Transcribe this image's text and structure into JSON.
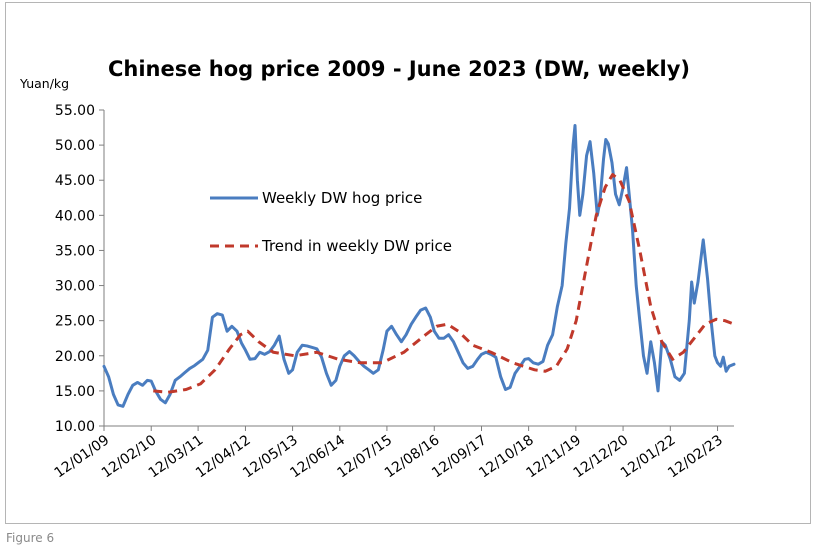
{
  "caption": "Figure 6",
  "chart_data": {
    "type": "line",
    "title": "Chinese hog price 2009 - June 2023 (DW, weekly)",
    "ylabel": "Yuan/kg",
    "xlabel": "",
    "ylim": [
      10,
      55
    ],
    "yticks": [
      "10.00",
      "15.00",
      "20.00",
      "25.00",
      "30.00",
      "35.00",
      "40.00",
      "45.00",
      "50.00",
      "55.00"
    ],
    "xticks": [
      "12/01/09",
      "12/02/10",
      "12/03/11",
      "12/04/12",
      "12/05/13",
      "12/06/14",
      "12/07/15",
      "12/08/16",
      "12/09/17",
      "12/10/18",
      "12/11/19",
      "12/12/20",
      "12/01/22",
      "12/02/23"
    ],
    "xtick_dates": [
      "2009-01-12",
      "2010-02-12",
      "2011-03-12",
      "2012-04-12",
      "2013-05-12",
      "2014-06-12",
      "2015-07-12",
      "2016-08-12",
      "2017-09-12",
      "2018-10-12",
      "2019-11-12",
      "2020-12-12",
      "2022-01-12",
      "2023-02-12"
    ],
    "x_end": "2023-06-30",
    "grid": false,
    "legend_position": "upper-left",
    "series": [
      {
        "name": "Weekly DW hog price",
        "style": "solid",
        "color": "#4a7dc0",
        "points": [
          [
            "2009-01-12",
            18.5
          ],
          [
            "2009-02-20",
            17.0
          ],
          [
            "2009-04-01",
            14.5
          ],
          [
            "2009-05-10",
            13.0
          ],
          [
            "2009-06-20",
            12.8
          ],
          [
            "2009-08-01",
            14.5
          ],
          [
            "2009-09-10",
            15.8
          ],
          [
            "2009-10-20",
            16.2
          ],
          [
            "2009-12-01",
            15.8
          ],
          [
            "2010-01-10",
            16.5
          ],
          [
            "2010-02-12",
            16.4
          ],
          [
            "2010-03-20",
            15.0
          ],
          [
            "2010-05-01",
            13.8
          ],
          [
            "2010-06-10",
            13.3
          ],
          [
            "2010-07-20",
            14.5
          ],
          [
            "2010-09-01",
            16.5
          ],
          [
            "2010-10-10",
            17.0
          ],
          [
            "2010-11-20",
            17.6
          ],
          [
            "2011-01-01",
            18.2
          ],
          [
            "2011-02-10",
            18.6
          ],
          [
            "2011-03-12",
            19.0
          ],
          [
            "2011-04-20",
            19.5
          ],
          [
            "2011-06-01",
            20.8
          ],
          [
            "2011-07-10",
            25.5
          ],
          [
            "2011-08-20",
            26.0
          ],
          [
            "2011-10-01",
            25.8
          ],
          [
            "2011-11-10",
            23.5
          ],
          [
            "2011-12-20",
            24.2
          ],
          [
            "2012-02-01",
            23.5
          ],
          [
            "2012-03-10",
            21.8
          ],
          [
            "2012-04-12",
            20.8
          ],
          [
            "2012-05-20",
            19.5
          ],
          [
            "2012-07-01",
            19.6
          ],
          [
            "2012-08-10",
            20.5
          ],
          [
            "2012-09-20",
            20.2
          ],
          [
            "2012-11-01",
            20.6
          ],
          [
            "2012-12-10",
            21.5
          ],
          [
            "2013-01-20",
            22.8
          ],
          [
            "2013-03-01",
            19.5
          ],
          [
            "2013-04-10",
            17.5
          ],
          [
            "2013-05-12",
            18.0
          ],
          [
            "2013-06-20",
            20.5
          ],
          [
            "2013-08-01",
            21.5
          ],
          [
            "2013-09-10",
            21.4
          ],
          [
            "2013-10-20",
            21.2
          ],
          [
            "2013-12-01",
            21.0
          ],
          [
            "2014-01-10",
            19.8
          ],
          [
            "2014-02-20",
            17.5
          ],
          [
            "2014-04-01",
            15.8
          ],
          [
            "2014-05-10",
            16.5
          ],
          [
            "2014-06-12",
            18.5
          ],
          [
            "2014-07-20",
            20.0
          ],
          [
            "2014-09-01",
            20.6
          ],
          [
            "2014-10-10",
            20.0
          ],
          [
            "2014-11-20",
            19.2
          ],
          [
            "2015-01-01",
            18.5
          ],
          [
            "2015-02-10",
            18.0
          ],
          [
            "2015-03-20",
            17.5
          ],
          [
            "2015-05-01",
            18.0
          ],
          [
            "2015-06-10",
            20.8
          ],
          [
            "2015-07-12",
            23.5
          ],
          [
            "2015-08-20",
            24.2
          ],
          [
            "2015-10-01",
            23.0
          ],
          [
            "2015-11-10",
            22.0
          ],
          [
            "2015-12-20",
            23.0
          ],
          [
            "2016-02-01",
            24.5
          ],
          [
            "2016-03-10",
            25.5
          ],
          [
            "2016-04-20",
            26.5
          ],
          [
            "2016-06-01",
            26.8
          ],
          [
            "2016-07-10",
            25.5
          ],
          [
            "2016-08-12",
            23.5
          ],
          [
            "2016-09-20",
            22.5
          ],
          [
            "2016-11-01",
            22.5
          ],
          [
            "2016-12-10",
            23.0
          ],
          [
            "2017-01-20",
            22.0
          ],
          [
            "2017-03-01",
            20.5
          ],
          [
            "2017-04-10",
            19.0
          ],
          [
            "2017-05-20",
            18.2
          ],
          [
            "2017-07-01",
            18.5
          ],
          [
            "2017-08-10",
            19.5
          ],
          [
            "2017-09-12",
            20.2
          ],
          [
            "2017-10-20",
            20.5
          ],
          [
            "2017-12-01",
            20.2
          ],
          [
            "2018-01-10",
            19.8
          ],
          [
            "2018-02-20",
            17.0
          ],
          [
            "2018-04-01",
            15.2
          ],
          [
            "2018-05-10",
            15.5
          ],
          [
            "2018-06-20",
            17.5
          ],
          [
            "2018-08-01",
            18.5
          ],
          [
            "2018-09-10",
            19.5
          ],
          [
            "2018-10-12",
            19.6
          ],
          [
            "2018-11-20",
            19.0
          ],
          [
            "2019-01-01",
            18.8
          ],
          [
            "2019-02-10",
            19.2
          ],
          [
            "2019-03-20",
            21.5
          ],
          [
            "2019-05-01",
            23.0
          ],
          [
            "2019-06-10",
            27.0
          ],
          [
            "2019-07-20",
            30.0
          ],
          [
            "2019-08-20",
            36.0
          ],
          [
            "2019-09-20",
            41.0
          ],
          [
            "2019-10-20",
            50.0
          ],
          [
            "2019-11-05",
            52.8
          ],
          [
            "2019-11-25",
            45.0
          ],
          [
            "2019-12-15",
            40.0
          ],
          [
            "2020-01-10",
            43.0
          ],
          [
            "2020-02-10",
            48.5
          ],
          [
            "2020-03-10",
            50.5
          ],
          [
            "2020-04-10",
            46.0
          ],
          [
            "2020-05-10",
            40.0
          ],
          [
            "2020-06-01",
            42.0
          ],
          [
            "2020-07-01",
            48.0
          ],
          [
            "2020-07-20",
            50.8
          ],
          [
            "2020-08-10",
            50.2
          ],
          [
            "2020-09-10",
            47.5
          ],
          [
            "2020-10-10",
            43.0
          ],
          [
            "2020-11-10",
            41.5
          ],
          [
            "2020-12-12",
            44.0
          ],
          [
            "2021-01-10",
            46.8
          ],
          [
            "2021-02-01",
            43.0
          ],
          [
            "2021-03-01",
            38.0
          ],
          [
            "2021-04-01",
            30.0
          ],
          [
            "2021-05-01",
            25.0
          ],
          [
            "2021-06-01",
            20.0
          ],
          [
            "2021-07-01",
            17.5
          ],
          [
            "2021-08-01",
            22.0
          ],
          [
            "2021-09-01",
            19.0
          ],
          [
            "2021-10-01",
            15.0
          ],
          [
            "2021-11-01",
            22.0
          ],
          [
            "2021-12-01",
            21.5
          ],
          [
            "2022-01-12",
            19.5
          ],
          [
            "2022-02-20",
            17.0
          ],
          [
            "2022-04-01",
            16.5
          ],
          [
            "2022-05-10",
            17.5
          ],
          [
            "2022-06-20",
            25.0
          ],
          [
            "2022-07-10",
            30.5
          ],
          [
            "2022-08-01",
            27.5
          ],
          [
            "2022-09-01",
            30.5
          ],
          [
            "2022-10-15",
            36.5
          ],
          [
            "2022-11-20",
            31.0
          ],
          [
            "2022-12-20",
            25.0
          ],
          [
            "2023-01-20",
            20.0
          ],
          [
            "2023-02-12",
            19.0
          ],
          [
            "2023-03-10",
            18.5
          ],
          [
            "2023-04-01",
            19.8
          ],
          [
            "2023-04-25",
            17.8
          ],
          [
            "2023-05-20",
            18.5
          ],
          [
            "2023-06-30",
            18.8
          ]
        ]
      },
      {
        "name": "Trend in weekly DW price",
        "style": "dashed",
        "color": "#c0392b",
        "points": [
          [
            "2010-03-01",
            15.0
          ],
          [
            "2010-07-01",
            14.8
          ],
          [
            "2010-12-01",
            15.2
          ],
          [
            "2011-04-01",
            16.0
          ],
          [
            "2011-08-01",
            18.0
          ],
          [
            "2011-12-01",
            21.0
          ],
          [
            "2012-03-01",
            23.0
          ],
          [
            "2012-05-01",
            23.5
          ],
          [
            "2012-08-01",
            22.0
          ],
          [
            "2012-12-01",
            20.5
          ],
          [
            "2013-06-01",
            20.0
          ],
          [
            "2013-12-01",
            20.5
          ],
          [
            "2014-06-01",
            19.5
          ],
          [
            "2014-12-01",
            19.0
          ],
          [
            "2015-06-01",
            19.0
          ],
          [
            "2015-12-01",
            20.5
          ],
          [
            "2016-06-01",
            23.0
          ],
          [
            "2016-09-01",
            24.2
          ],
          [
            "2016-12-01",
            24.5
          ],
          [
            "2017-03-01",
            23.5
          ],
          [
            "2017-07-01",
            21.5
          ],
          [
            "2017-12-01",
            20.5
          ],
          [
            "2018-06-01",
            19.0
          ],
          [
            "2018-12-01",
            18.0
          ],
          [
            "2019-03-01",
            17.8
          ],
          [
            "2019-06-01",
            18.5
          ],
          [
            "2019-09-01",
            21.0
          ],
          [
            "2019-11-15",
            25.0
          ],
          [
            "2020-02-01",
            32.0
          ],
          [
            "2020-05-01",
            40.0
          ],
          [
            "2020-07-15",
            44.0
          ],
          [
            "2020-09-15",
            45.8
          ],
          [
            "2020-11-15",
            45.0
          ],
          [
            "2021-02-01",
            42.0
          ],
          [
            "2021-05-01",
            35.0
          ],
          [
            "2021-08-01",
            27.0
          ],
          [
            "2021-11-01",
            22.0
          ],
          [
            "2022-02-01",
            19.5
          ],
          [
            "2022-05-01",
            20.5
          ],
          [
            "2022-08-01",
            22.5
          ],
          [
            "2022-11-01",
            24.5
          ],
          [
            "2023-02-01",
            25.2
          ],
          [
            "2023-04-15",
            25.0
          ],
          [
            "2023-06-30",
            24.5
          ]
        ]
      }
    ]
  }
}
